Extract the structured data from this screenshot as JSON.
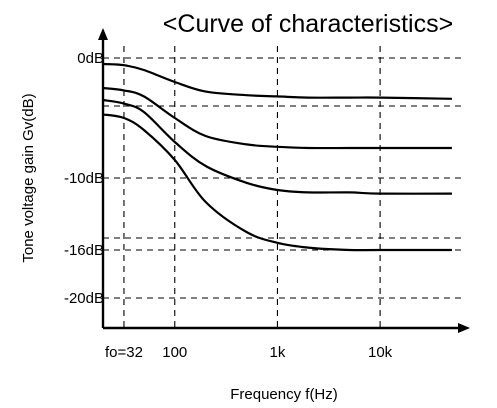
{
  "chart_data": {
    "type": "line",
    "title": "<Curve of characteristics>",
    "xlabel": "Frequency   f(Hz)",
    "ylabel": "Tone voltage gain  Gv(dB)",
    "x_scale": "log",
    "xlim": [
      20,
      60000
    ],
    "ylim": [
      -22.5,
      0.5
    ],
    "x_ticks": [
      {
        "value": 32,
        "label": "fo=32"
      },
      {
        "value": 100,
        "label": "100"
      },
      {
        "value": 1000,
        "label": "1k"
      },
      {
        "value": 10000,
        "label": "10k"
      }
    ],
    "y_ticks": [
      {
        "value": 0,
        "label": "0dB"
      },
      {
        "value": -10,
        "label": "-10dB"
      },
      {
        "value": -16,
        "label": "-16dB"
      },
      {
        "value": -20,
        "label": "-20dB"
      }
    ],
    "extra_grid_y": [
      -4,
      -15
    ],
    "grid": true,
    "legend": "none",
    "series": [
      {
        "x": [
          20,
          32,
          50,
          100,
          200,
          500,
          1000,
          2000,
          5000,
          10000,
          50000
        ],
        "y": [
          -0.5,
          -0.6,
          -1.0,
          -2.0,
          -2.8,
          -3.1,
          -3.2,
          -3.3,
          -3.3,
          -3.3,
          -3.4
        ]
      },
      {
        "x": [
          20,
          32,
          50,
          100,
          200,
          500,
          1000,
          2000,
          5000,
          10000,
          50000
        ],
        "y": [
          -2.5,
          -2.7,
          -3.2,
          -5.0,
          -6.5,
          -7.2,
          -7.4,
          -7.5,
          -7.5,
          -7.5,
          -7.5
        ]
      },
      {
        "x": [
          20,
          32,
          50,
          100,
          200,
          500,
          1000,
          2000,
          5000,
          10000,
          50000
        ],
        "y": [
          -3.5,
          -3.8,
          -4.5,
          -7.0,
          -9.0,
          -10.4,
          -11.0,
          -11.2,
          -11.2,
          -11.3,
          -11.3
        ]
      },
      {
        "x": [
          20,
          32,
          50,
          100,
          200,
          500,
          1000,
          2000,
          5000,
          10000,
          50000
        ],
        "y": [
          -4.7,
          -5.0,
          -6.0,
          -8.5,
          -12.0,
          -14.5,
          -15.4,
          -15.8,
          -16.0,
          -16.0,
          -16.0
        ]
      }
    ]
  }
}
